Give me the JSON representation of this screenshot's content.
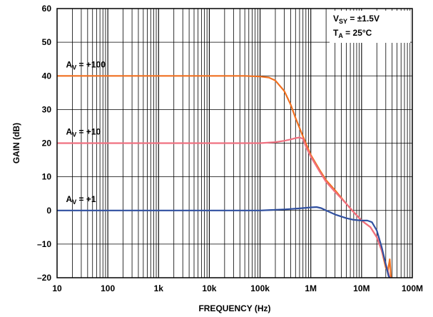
{
  "chart_data": {
    "type": "line",
    "xlabel": "FREQUENCY (Hz)",
    "ylabel": "GAIN (dB)",
    "xscale": "log",
    "xlim": [
      10,
      100000000
    ],
    "ylim": [
      -20,
      60
    ],
    "grid": true,
    "x_ticks": [
      {
        "value": 10,
        "label": "10"
      },
      {
        "value": 100,
        "label": "100"
      },
      {
        "value": 1000,
        "label": "1k"
      },
      {
        "value": 10000,
        "label": "10k"
      },
      {
        "value": 100000,
        "label": "100k"
      },
      {
        "value": 1000000,
        "label": "1M"
      },
      {
        "value": 10000000,
        "label": "10M"
      },
      {
        "value": 100000000,
        "label": "100M"
      }
    ],
    "y_ticks": [
      {
        "value": -20,
        "label": "–20"
      },
      {
        "value": -10,
        "label": "–10"
      },
      {
        "value": 0,
        "label": "0"
      },
      {
        "value": 10,
        "label": "10"
      },
      {
        "value": 20,
        "label": "20"
      },
      {
        "value": 30,
        "label": "30"
      },
      {
        "value": 40,
        "label": "40"
      },
      {
        "value": 50,
        "label": "50"
      },
      {
        "value": 60,
        "label": "60"
      }
    ],
    "conditions": {
      "line1": {
        "main": "V",
        "sub": "SY",
        "rest": " = ±1.5V"
      },
      "line2": {
        "main": "T",
        "sub": "A",
        "rest": " = 25°C"
      }
    },
    "series": [
      {
        "label": {
          "main": "A",
          "sub": "V",
          "rest": " = +100"
        },
        "label_at": [
          15,
          42.5
        ],
        "color": "#f07020",
        "points": [
          [
            10,
            40
          ],
          [
            1000,
            40
          ],
          [
            10000,
            40
          ],
          [
            50000,
            40
          ],
          [
            100000,
            39.8
          ],
          [
            150000,
            39.5
          ],
          [
            200000,
            38.6
          ],
          [
            300000,
            35.5
          ],
          [
            400000,
            31.5
          ],
          [
            500000,
            27.5
          ],
          [
            700000,
            22
          ],
          [
            1000000,
            16.5
          ],
          [
            1500000,
            12
          ],
          [
            2000000,
            9
          ],
          [
            3000000,
            6
          ],
          [
            5000000,
            2
          ],
          [
            7000000,
            -0.5
          ],
          [
            10000000,
            -3
          ],
          [
            15000000,
            -5
          ],
          [
            20000000,
            -8
          ],
          [
            25000000,
            -12
          ],
          [
            30000000,
            -17
          ],
          [
            33000000,
            -18
          ],
          [
            36000000,
            -14.5
          ],
          [
            38000000,
            -20
          ]
        ]
      },
      {
        "label": {
          "main": "A",
          "sub": "V",
          "rest": " = +10"
        },
        "label_at": [
          15,
          22.5
        ],
        "color": "#f07080",
        "points": [
          [
            10,
            20
          ],
          [
            10000,
            20
          ],
          [
            100000,
            20
          ],
          [
            200000,
            20.3
          ],
          [
            300000,
            20.7
          ],
          [
            400000,
            21.1
          ],
          [
            500000,
            21.5
          ],
          [
            600000,
            21.7
          ],
          [
            700000,
            21.3
          ],
          [
            800000,
            19
          ],
          [
            1000000,
            16
          ],
          [
            1500000,
            11.5
          ],
          [
            2000000,
            8.5
          ],
          [
            3000000,
            5.5
          ],
          [
            5000000,
            2
          ],
          [
            7000000,
            -0.5
          ],
          [
            10000000,
            -3
          ],
          [
            15000000,
            -5
          ],
          [
            20000000,
            -8
          ],
          [
            25000000,
            -12
          ],
          [
            30000000,
            -16
          ],
          [
            33000000,
            -18
          ],
          [
            35000000,
            -19.5
          ],
          [
            37000000,
            -20
          ]
        ]
      },
      {
        "label": {
          "main": "A",
          "sub": "V",
          "rest": " = +1"
        },
        "label_at": [
          15,
          2.5
        ],
        "color": "#3050a0",
        "points": [
          [
            10,
            0
          ],
          [
            10000,
            0
          ],
          [
            100000,
            0
          ],
          [
            300000,
            0.3
          ],
          [
            600000,
            0.6
          ],
          [
            1000000,
            0.9
          ],
          [
            1300000,
            1
          ],
          [
            1600000,
            0.7
          ],
          [
            2000000,
            0
          ],
          [
            3000000,
            -1.2
          ],
          [
            5000000,
            -2.3
          ],
          [
            7000000,
            -2.8
          ],
          [
            10000000,
            -3
          ],
          [
            13000000,
            -3
          ],
          [
            16000000,
            -3.5
          ],
          [
            20000000,
            -6
          ],
          [
            25000000,
            -11
          ],
          [
            30000000,
            -16
          ],
          [
            34000000,
            -19.5
          ],
          [
            36000000,
            -20
          ]
        ]
      }
    ]
  }
}
